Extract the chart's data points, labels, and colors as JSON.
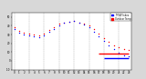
{
  "bg_color": "#d8d8d8",
  "plot_bg": "#ffffff",
  "temp_color": "#ff0000",
  "thsw_color": "#0000ff",
  "legend_temp": "Outdoor Temp",
  "legend_thsw": "THSW Index",
  "temp_scatter_x": [
    0,
    1,
    2,
    3,
    4,
    5,
    6,
    7,
    8,
    9,
    10,
    11,
    12,
    13,
    14,
    15,
    16,
    17,
    18,
    19,
    20,
    21,
    22,
    23
  ],
  "temp_scatter_y": [
    38,
    34,
    32,
    31,
    30,
    29,
    31,
    35,
    38,
    42,
    44,
    45,
    46,
    44,
    42,
    40,
    36,
    31,
    26,
    22,
    18,
    15,
    13,
    12
  ],
  "thsw_scatter_x": [
    0,
    1,
    2,
    3,
    4,
    5,
    6,
    7,
    8,
    9,
    10,
    11,
    12,
    13,
    14,
    15,
    16,
    17,
    18,
    19,
    20,
    21,
    22,
    23
  ],
  "thsw_scatter_y": [
    36,
    32,
    30,
    29,
    28,
    27,
    29,
    33,
    36,
    40,
    43,
    45,
    46,
    44,
    41,
    38,
    33,
    28,
    23,
    18,
    13,
    9,
    6,
    5
  ],
  "hline_temp_y": 8,
  "hline_temp_x1": 17,
  "hline_temp_x2": 23,
  "hline_thsw_y": 3,
  "hline_thsw_x1": 18,
  "hline_thsw_x2": 23,
  "ylim": [
    -10,
    55
  ],
  "yticks": [
    -10,
    0,
    10,
    20,
    30,
    40,
    50
  ],
  "ytick_labels": [
    "-10",
    "0",
    "10",
    "20",
    "30",
    "40",
    "50"
  ],
  "xlim": [
    -0.5,
    23.5
  ],
  "xticks": [
    0,
    1,
    2,
    3,
    4,
    5,
    6,
    7,
    8,
    9,
    10,
    11,
    12,
    13,
    14,
    15,
    16,
    17,
    18,
    19,
    20,
    21,
    22,
    23
  ],
  "grid_x": [
    0,
    3,
    6,
    9,
    12,
    15,
    18,
    21
  ]
}
